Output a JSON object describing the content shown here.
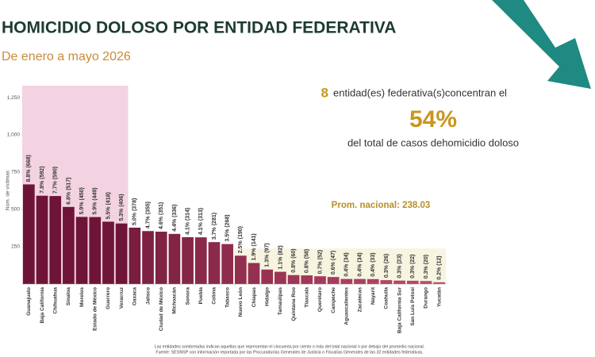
{
  "chart_data": {
    "type": "bar",
    "title": "HOMICIDIO DOLOSO POR ENTIDAD FEDERATIVA",
    "subtitle": "De enero a mayo 2026",
    "y_label": "Núm. de víctimas",
    "categories": [
      "Guanajuato",
      "Baja California",
      "Chihuahua",
      "Sinaloa",
      "Morelos",
      "Estado de México",
      "Guerrero",
      "Veracruz",
      "Oaxaca",
      "Jalisco",
      "Ciudad de México",
      "Michoacán",
      "Sonora",
      "Puebla",
      "Colima",
      "Tabasco",
      "Nuevo León",
      "Chiapas",
      "Hidalgo",
      "Tamaulipas",
      "Quintana Roo",
      "Tlaxcala",
      "Querétaro",
      "Campeche",
      "Aguascalientes",
      "Zacatecas",
      "Nayarit",
      "Coahuila",
      "Baja California Sur",
      "San Luis Potosí",
      "Durango",
      "Yucatán"
    ],
    "values": [
      668,
      592,
      590,
      517,
      450,
      449,
      418,
      406,
      378,
      355,
      351,
      336,
      314,
      313,
      281,
      268,
      190,
      141,
      97,
      82,
      60,
      58,
      52,
      47,
      34,
      34,
      33,
      26,
      23,
      22,
      20,
      12
    ],
    "value_labels": [
      "8.8% (668)",
      "7.8% (592)",
      "7.7% (590)",
      "6.8% (517)",
      "5.9% (450)",
      "5.9% (449)",
      "5.5% (418)",
      "5.3% (406)",
      "5.0% (378)",
      "4.7% (355)",
      "4.6% (351)",
      "4.4% (336)",
      "4.1% (314)",
      "4.1% (313)",
      "3.7% (281)",
      "3.5% (268)",
      "2.5% (190)",
      "1.9% (141)",
      "1.3% (97)",
      "1.1% (82)",
      "0.8% (60)",
      "0.8% (58)",
      "0.7% (52)",
      "0.6% (47)",
      "0.4% (34)",
      "0.4% (34)",
      "0.4% (33)",
      "0.3% (26)",
      "0.3% (23)",
      "0.3% (22)",
      "0.3% (20)",
      "0.2% (12)"
    ],
    "colors": [
      "#6e1537",
      "#6e1537",
      "#6e1537",
      "#6e1537",
      "#6e1537",
      "#6e1537",
      "#6e1537",
      "#6e1537",
      "#7a1d3f",
      "#7d2041",
      "#802243",
      "#832445",
      "#862647",
      "#892849",
      "#8c2a4b",
      "#8f2c4d",
      "#922e4f",
      "#953051",
      "#983253",
      "#9b3455",
      "#9e3657",
      "#a13859",
      "#a43a5b",
      "#a73c5d",
      "#aa3e5f",
      "#ad4061",
      "#b04263",
      "#b34465",
      "#b64667",
      "#b94869",
      "#bc4a6b",
      "#bf4c6d"
    ],
    "ylim": [
      0,
      1330
    ],
    "yticks": [
      250,
      500,
      750,
      {
        "value": 1000,
        "label": "1,000"
      },
      {
        "value": 1250,
        "label": "1,250"
      }
    ],
    "highlight_count": 8,
    "highlight_text": "entidad(es) federativa(s)concentran el",
    "highlight_share": "54%",
    "highlight_text2": "del total de casos dehomicidio doloso",
    "average": 238.03,
    "average_label": "Prom. nacional: 238.03",
    "notes": [
      "Las entidades sombreadas indican aquellas que representan el cincuenta por ciento o más del total nacional o por debajo del promedio nacional.",
      "Fuente: SESNSP con información reportada por las Procuradurías Generales de Justicia o Fiscalías Generales de las 32 entidades federativas."
    ]
  }
}
